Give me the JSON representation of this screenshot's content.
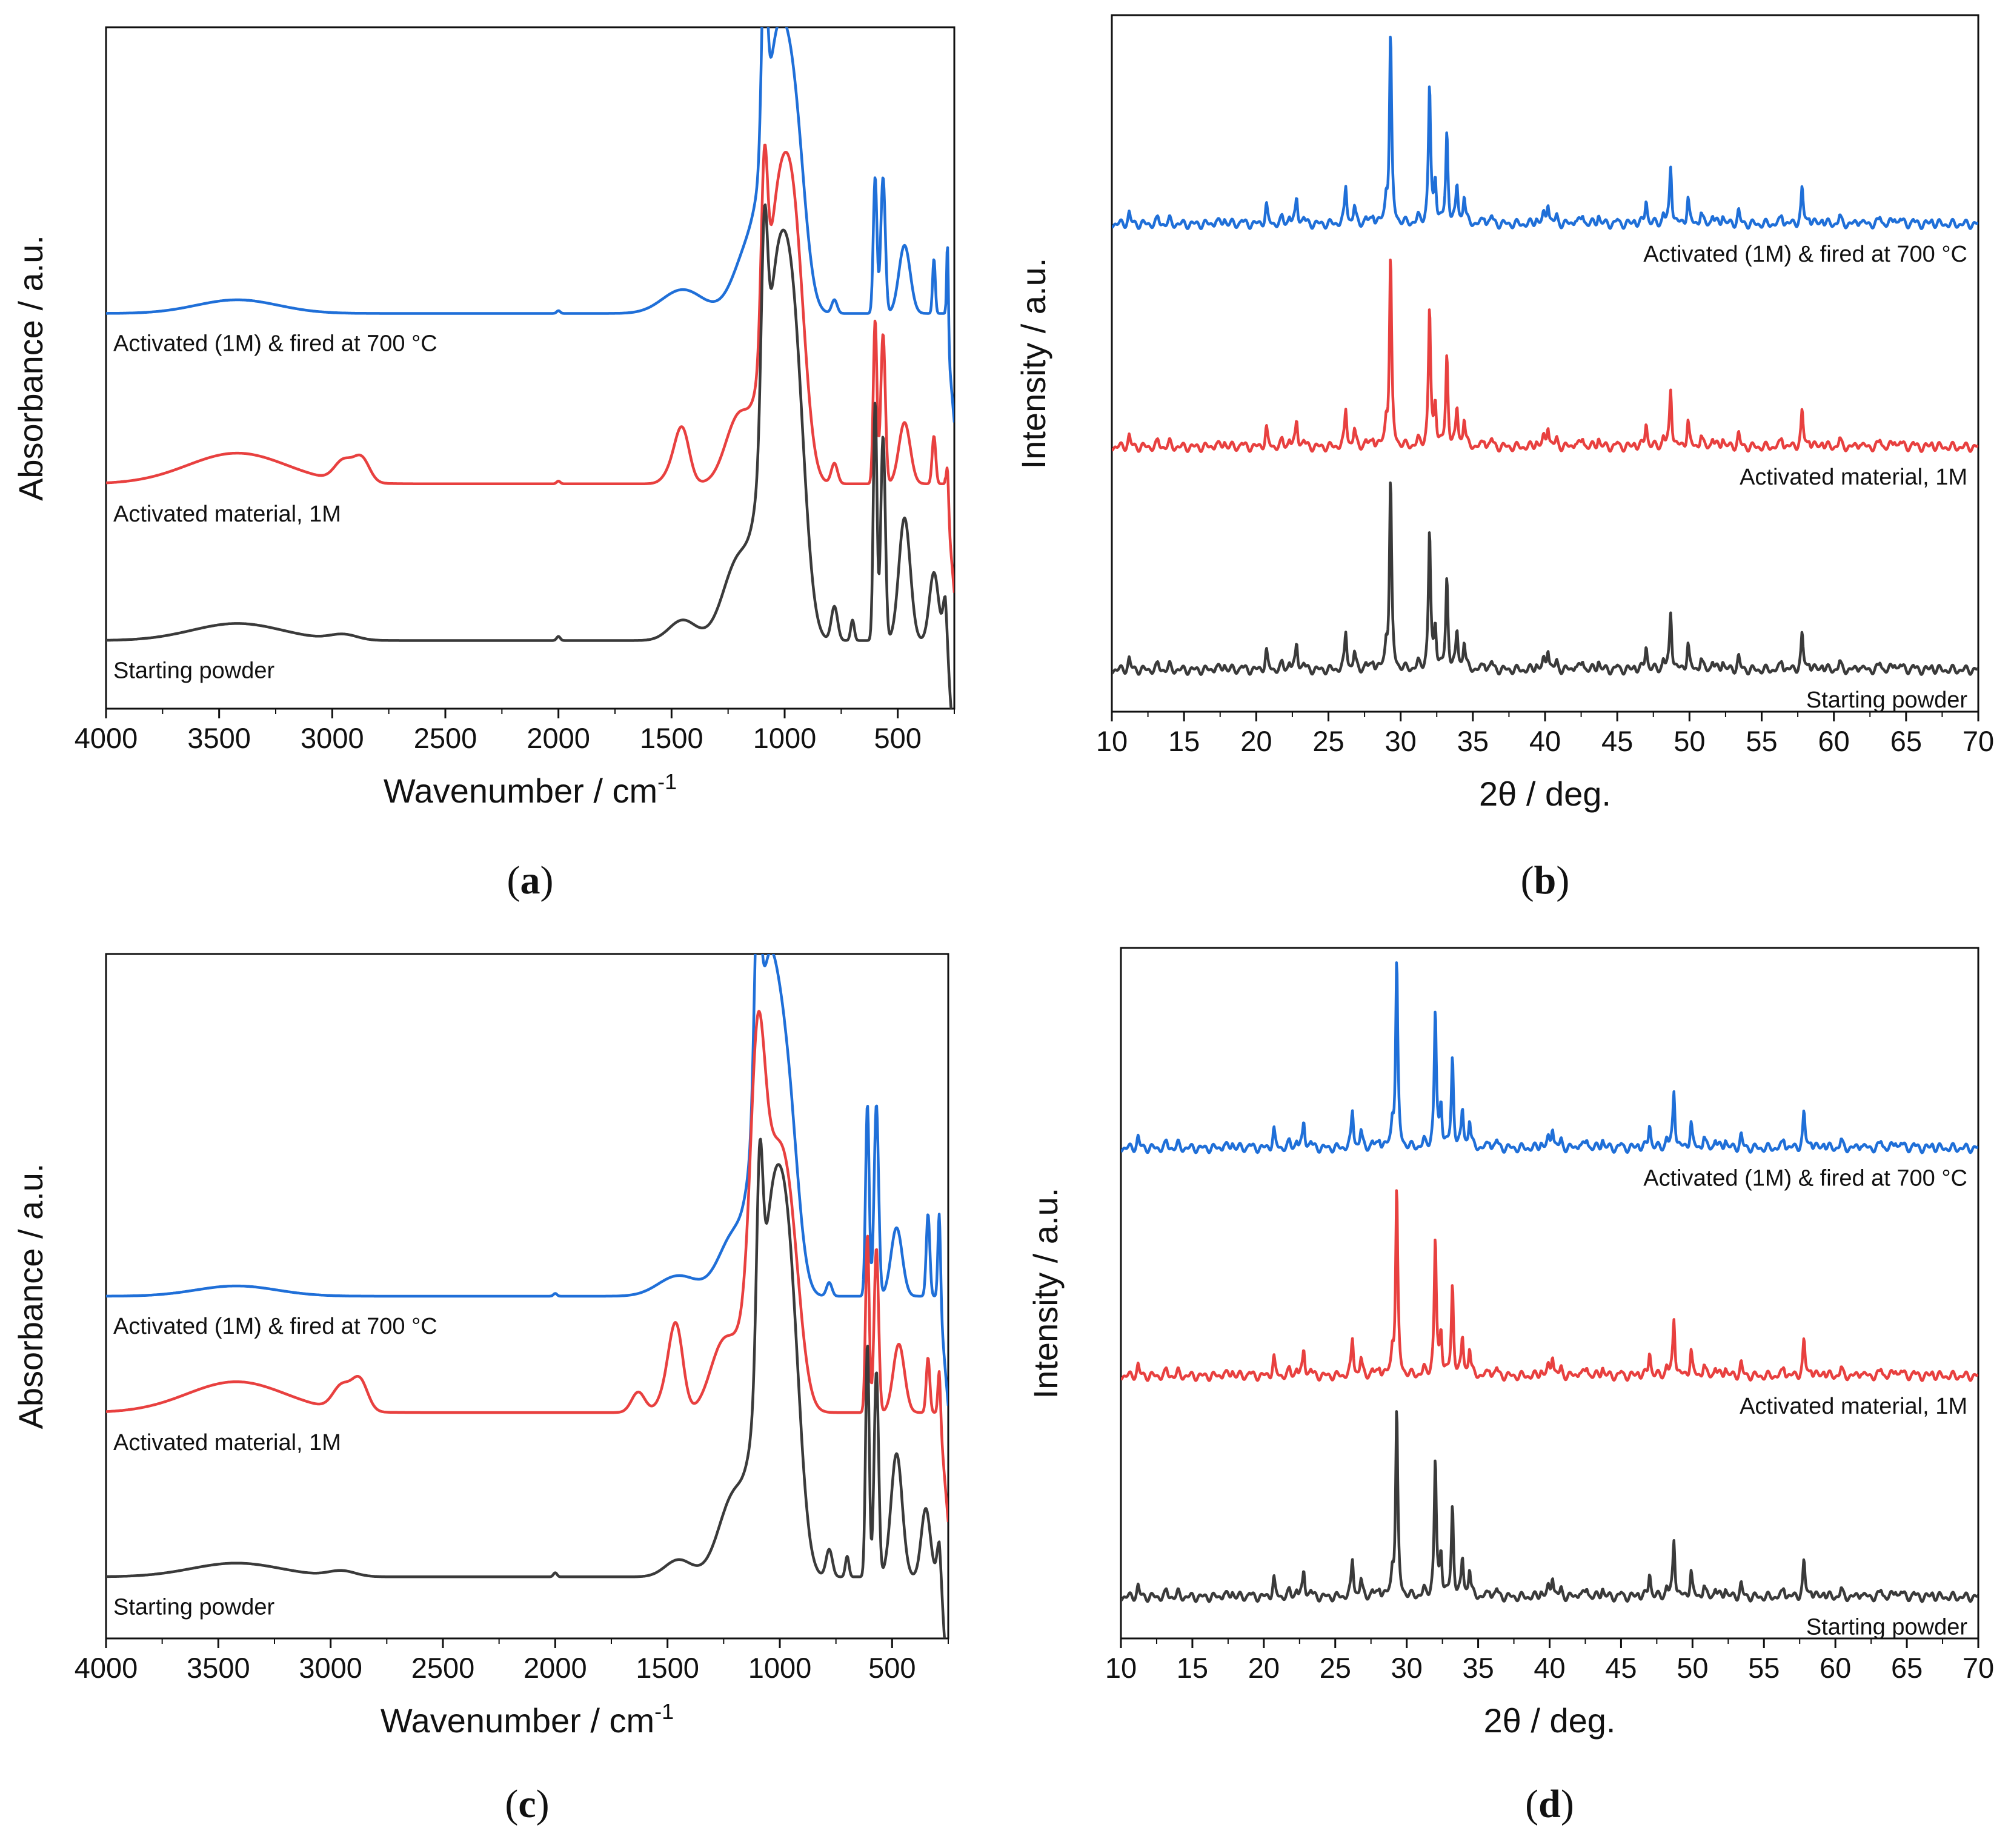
{
  "figure": {
    "colors": {
      "blue": "#1f6fd8",
      "red": "#e8403f",
      "dark": "#3a3a3a"
    }
  },
  "chart_data": [
    {
      "id": "a",
      "type": "line",
      "panel_label": "a",
      "xlabel": "Wavenumber / cm",
      "xlabel_sup": "-1",
      "ylabel": "Absorbance / a.u.",
      "xlim": [
        4000,
        250
      ],
      "xticks": [
        "4000",
        "3500",
        "3000",
        "2500",
        "2000",
        "1500",
        "1000",
        "500"
      ],
      "yticks": "none (arbitrary units)",
      "series": [
        {
          "name": "Activated (1M) & fired at 700 °C",
          "color": "#1f6fd8",
          "baseline": 0.58,
          "dominant_peak_cm-1": 1030
        },
        {
          "name": "Activated material, 1M",
          "color": "#e8403f",
          "baseline": 0.33,
          "dominant_peak_cm-1": 1025
        },
        {
          "name": "Starting powder",
          "color": "#3a3a3a",
          "baseline": 0.1,
          "dominant_peak_cm-1": 1030
        }
      ]
    },
    {
      "id": "b",
      "type": "line",
      "panel_label": "b",
      "xlabel": "2θ / deg.",
      "ylabel": "Intensity / a.u.",
      "xlim": [
        10,
        70
      ],
      "xticks": [
        "10",
        "15",
        "20",
        "25",
        "30",
        "35",
        "40",
        "45",
        "50",
        "55",
        "60",
        "65",
        "70"
      ],
      "yticks": "none (arbitrary units)",
      "series": [
        {
          "name": "Activated (1M) & fired at 700 °C",
          "color": "#1f6fd8",
          "baseline": 0.7,
          "strongest_peak_2theta": 29.3
        },
        {
          "name": "Activated material, 1M",
          "color": "#e8403f",
          "baseline": 0.38,
          "strongest_peak_2theta": 29.3
        },
        {
          "name": "Starting powder",
          "color": "#3a3a3a",
          "baseline": 0.06,
          "strongest_peak_2theta": 29.3
        }
      ]
    },
    {
      "id": "c",
      "type": "line",
      "panel_label": "c",
      "xlabel": "Wavenumber / cm",
      "xlabel_sup": "-1",
      "ylabel": "Absorbance / a.u.",
      "xlim": [
        4000,
        250
      ],
      "xticks": [
        "4000",
        "3500",
        "3000",
        "2500",
        "2000",
        "1500",
        "1000",
        "500"
      ],
      "yticks": "none (arbitrary units)",
      "series": [
        {
          "name": "Activated (1M) & fired at 700 °C",
          "color": "#1f6fd8",
          "baseline": 0.5,
          "dominant_peak_cm-1": 1050
        },
        {
          "name": "Activated material, 1M",
          "color": "#e8403f",
          "baseline": 0.33,
          "dominant_peak_cm-1": 1060
        },
        {
          "name": "Starting powder",
          "color": "#3a3a3a",
          "baseline": 0.09,
          "dominant_peak_cm-1": 1030
        }
      ]
    },
    {
      "id": "d",
      "type": "line",
      "panel_label": "d",
      "xlabel": "2θ / deg.",
      "ylabel": "Intensity / a.u.",
      "xlim": [
        10,
        70
      ],
      "xticks": [
        "10",
        "15",
        "20",
        "25",
        "30",
        "35",
        "40",
        "45",
        "50",
        "55",
        "60",
        "65",
        "70"
      ],
      "yticks": "none (arbitrary units)",
      "series": [
        {
          "name": "Activated (1M) & fired at 700 °C",
          "color": "#1f6fd8",
          "baseline": 0.71,
          "strongest_peak_2theta": 29.3
        },
        {
          "name": "Activated material, 1M",
          "color": "#e8403f",
          "baseline": 0.38,
          "strongest_peak_2theta": 29.3
        },
        {
          "name": "Starting powder",
          "color": "#3a3a3a",
          "baseline": 0.06,
          "strongest_peak_2theta": 29.3
        }
      ]
    }
  ]
}
